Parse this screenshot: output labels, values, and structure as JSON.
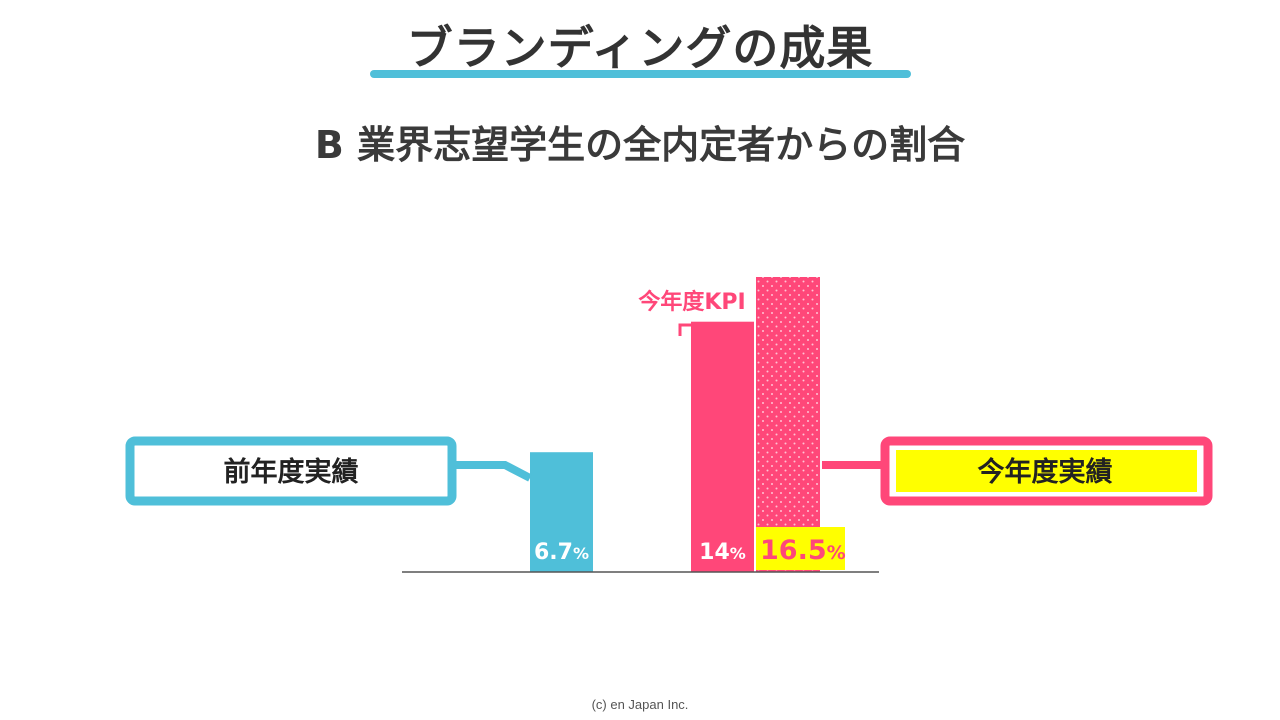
{
  "slide": {
    "title": "ブランディングの成果",
    "subtitle": "B 業界志望学生の全内定者からの割合",
    "copyright": "(c) en Japan Inc."
  },
  "colors": {
    "prev_year": "#4fbfd9",
    "kpi": "#ff4779",
    "actual": "#ff4779",
    "highlight": "#ffff00",
    "title_accent": "#4fbfd9"
  },
  "chart_data": {
    "type": "bar",
    "unit": "%",
    "ylim": [
      0,
      16.5
    ],
    "grid": false,
    "bars": [
      {
        "key": "prev",
        "name": "前年度実績",
        "value": 6.7,
        "value_label": "6.7",
        "unit": "%",
        "style": "solid",
        "color": "#4fbfd9"
      },
      {
        "key": "kpi",
        "name": "今年度KPI",
        "value": 14,
        "value_label": "14",
        "unit": "%",
        "style": "solid",
        "color": "#ff4779"
      },
      {
        "key": "actual",
        "name": "今年度実績",
        "value": 16.5,
        "value_label": "16.5",
        "unit": "%",
        "style": "dotted",
        "color": "#ff4779"
      }
    ]
  }
}
